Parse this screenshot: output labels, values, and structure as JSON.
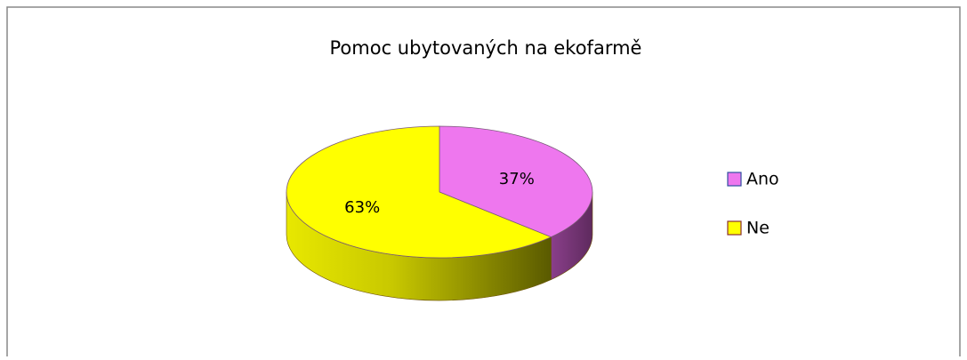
{
  "chart_data": {
    "type": "pie",
    "title": "Pomoc ubytovaných na ekofarmě",
    "categories": [
      "Ano",
      "Ne"
    ],
    "values": [
      37,
      63
    ],
    "value_labels": [
      "37%",
      "63%"
    ],
    "colors": [
      "#ee77ee",
      "#ffff00"
    ],
    "legend": "right"
  }
}
